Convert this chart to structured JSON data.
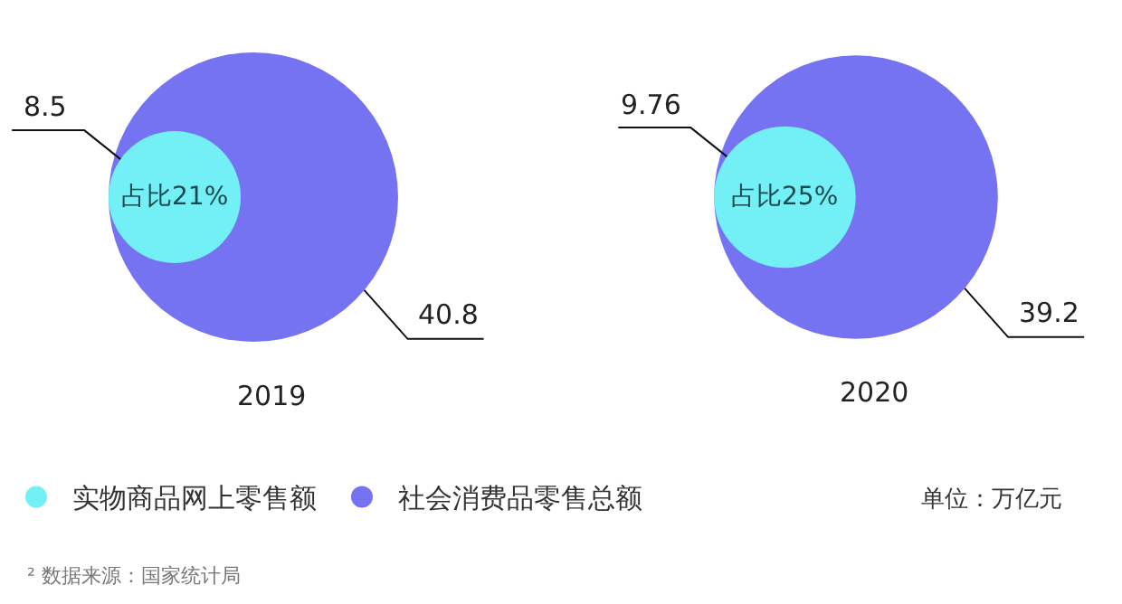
{
  "chart_data": {
    "type": "other",
    "categories": [
      "2019",
      "2020"
    ],
    "series": [
      {
        "name": "实物商品网上零售额",
        "color": "#72f0f5",
        "values": [
          8.5,
          9.76
        ]
      },
      {
        "name": "社会消费品零售总额",
        "color": "#7673f2",
        "values": [
          40.8,
          39.2
        ]
      }
    ],
    "data_labels": true,
    "legend": "bottom left",
    "annotations": [
      "占比21%",
      "占比25%",
      "单位：万亿元",
      "² 数据来源：国家统计局"
    ]
  }
}
